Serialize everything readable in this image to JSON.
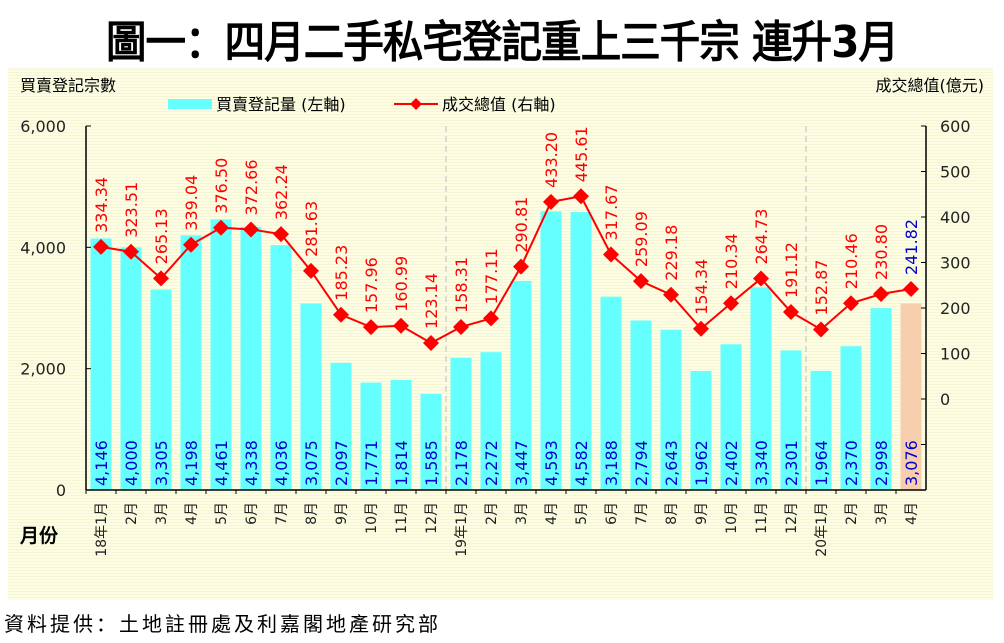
{
  "title": "圖一：四月二手私宅登記重上三千宗  連升3月",
  "source": "資料提供：土地註冊處及利嘉閣地產研究部",
  "colors": {
    "bar": "#66ffff",
    "bar_highlight": "#f8cfae",
    "line": "#ff0000",
    "line_label": "#ff0000",
    "line_label_highlight": "#0000cc",
    "bar_label": "#0000cc",
    "axis": "#000000",
    "year_divider": "#c0c0c0"
  },
  "chart_data": {
    "type": "bar+line",
    "title": "圖一：四月二手私宅登記重上三千宗  連升3月",
    "xlabel": "月份",
    "ylabel_left": "買賣登記宗數",
    "ylabel_right": "成交總值(億元)",
    "ylim_left": [
      0,
      6000
    ],
    "yticks_left": [
      "0",
      "2,000",
      "4,000",
      "6,000"
    ],
    "ylim_right": [
      -200,
      600
    ],
    "yticks_right": [
      "0",
      "100",
      "200",
      "300",
      "400",
      "500",
      "600"
    ],
    "legend": [
      "買賣登記量 (左軸)",
      "成交總值 (右軸)"
    ],
    "legend_position": "top-center",
    "grid": false,
    "categories": [
      "18年1月",
      "2月",
      "3月",
      "4月",
      "5月",
      "6月",
      "7月",
      "8月",
      "9月",
      "10月",
      "11月",
      "12月",
      "19年1月",
      "2月",
      "3月",
      "4月",
      "5月",
      "6月",
      "7月",
      "8月",
      "9月",
      "10月",
      "11月",
      "12月",
      "20年1月",
      "2月",
      "3月",
      "4月"
    ],
    "year_dividers_after": [
      "12月 (2018)",
      "12月 (2019)"
    ],
    "highlight_index_label": "4月 (2020)",
    "series": [
      {
        "name": "買賣登記量 (左軸)",
        "type": "bar",
        "axis": "left",
        "values": [
          4146,
          4000,
          3305,
          4198,
          4461,
          4338,
          4036,
          3075,
          2097,
          1771,
          1814,
          1585,
          2178,
          2272,
          3447,
          4593,
          4582,
          3188,
          2794,
          2643,
          1962,
          2402,
          3340,
          2301,
          1964,
          2370,
          2998,
          3076
        ],
        "labels": [
          "4,146",
          "4,000",
          "3,305",
          "4,198",
          "4,461",
          "4,338",
          "4,036",
          "3,075",
          "2,097",
          "1,771",
          "1,814",
          "1,585",
          "2,178",
          "2,272",
          "3,447",
          "4,593",
          "4,582",
          "3,188",
          "2,794",
          "2,643",
          "1,962",
          "2,402",
          "3,340",
          "2,301",
          "1,964",
          "2,370",
          "2,998",
          "3,076"
        ]
      },
      {
        "name": "成交總值 (右軸)",
        "type": "line",
        "axis": "right",
        "values": [
          334.34,
          323.51,
          265.13,
          339.04,
          376.5,
          372.66,
          362.24,
          281.63,
          185.23,
          157.96,
          160.99,
          123.14,
          158.31,
          177.11,
          290.81,
          433.2,
          445.61,
          317.67,
          259.09,
          229.18,
          154.34,
          210.34,
          264.73,
          191.12,
          152.87,
          210.46,
          230.8,
          241.82
        ],
        "labels": [
          "334.34",
          "323.51",
          "265.13",
          "339.04",
          "376.50",
          "372.66",
          "362.24",
          "281.63",
          "185.23",
          "157.96",
          "160.99",
          "123.14",
          "158.31",
          "177.11",
          "290.81",
          "433.20",
          "445.61",
          "317.67",
          "259.09",
          "229.18",
          "154.34",
          "210.34",
          "264.73",
          "191.12",
          "152.87",
          "210.46",
          "230.80",
          "241.82"
        ]
      }
    ]
  }
}
